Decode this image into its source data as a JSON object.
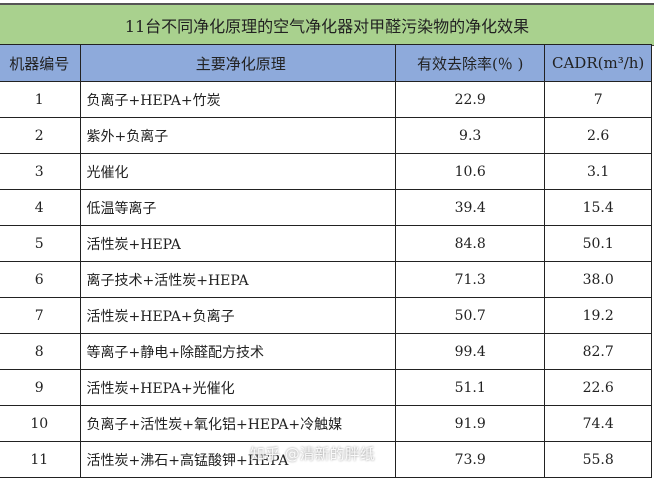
{
  "title": "11台不同净化原理的空气净化器对甲醛污染物的净化效果",
  "columns": [
    "机器编号",
    "主要净化原理",
    "有效去除率(％ )",
    "CADR(m³/h)"
  ],
  "rows": [
    [
      "1",
      "负离子+HEPA+竹炭",
      "22.9",
      "7"
    ],
    [
      "2",
      "紫外+负离子",
      "9.3",
      "2.6"
    ],
    [
      "3",
      "光催化",
      "10.6",
      "3.1"
    ],
    [
      "4",
      "低温等离子",
      "39.4",
      "15.4"
    ],
    [
      "5",
      "活性炭+HEPA",
      "84.8",
      "50.1"
    ],
    [
      "6",
      "离子技术+活性炭+HEPA",
      "71.3",
      "38.0"
    ],
    [
      "7",
      "活性炭+HEPA+负离子",
      "50.7",
      "19.2"
    ],
    [
      "8",
      "等离子+静电+除醛配方技术",
      "99.4",
      "82.7"
    ],
    [
      "9",
      "活性炭+HEPA+光催化",
      "51.1",
      "22.6"
    ],
    [
      "10",
      "负离子+活性炭+氧化铝+HEPA+冷触媒",
      "91.9",
      "74.4"
    ],
    [
      "11",
      "活性炭+沸石+高锰酸钾+HEPA",
      "73.9",
      "55.8"
    ]
  ],
  "watermark": "知乎 @清新的胖纸",
  "colors": {
    "title_bg": "#a9d18e",
    "header_bg": "#8eaadb"
  }
}
